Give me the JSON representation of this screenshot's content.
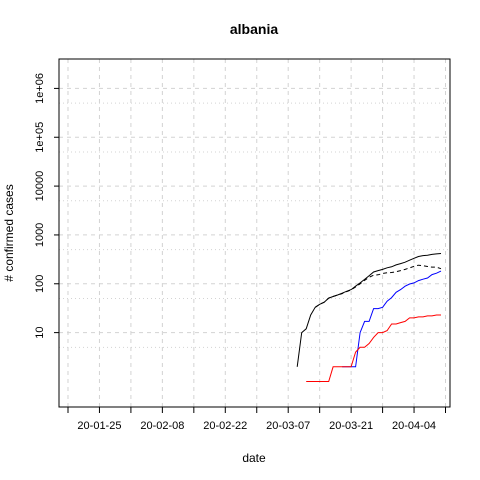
{
  "chart_data": {
    "type": "line",
    "title": "albania",
    "xlabel": "date",
    "ylabel": "# confirmed cases",
    "y_scale": "log",
    "ylim": [
      0.3,
      4000000
    ],
    "xlim": [
      "2020-01-16",
      "2020-04-12"
    ],
    "grid": true,
    "x_ticks": [
      {
        "date": "2020-01-25",
        "label": "20-01-25"
      },
      {
        "date": "2020-02-08",
        "label": "20-02-08"
      },
      {
        "date": "2020-02-22",
        "label": "20-02-22"
      },
      {
        "date": "2020-03-07",
        "label": "20-03-07"
      },
      {
        "date": "2020-03-21",
        "label": "20-03-21"
      },
      {
        "date": "2020-04-04",
        "label": "20-04-04"
      }
    ],
    "x_minor_ticks": [
      "2020-01-18",
      "2020-02-01",
      "2020-02-15",
      "2020-02-29",
      "2020-03-14",
      "2020-03-28",
      "2020-04-11"
    ],
    "y_ticks": [
      {
        "value": 10,
        "label": "10"
      },
      {
        "value": 100,
        "label": "100"
      },
      {
        "value": 1000,
        "label": "1000"
      },
      {
        "value": 10000,
        "label": "10000"
      },
      {
        "value": 100000,
        "label": "1e+05"
      },
      {
        "value": 1000000,
        "label": "1e+06"
      }
    ],
    "series": [
      {
        "color": "#000000",
        "style": "solid",
        "x": [
          "2020-03-09",
          "2020-03-10",
          "2020-03-11",
          "2020-03-12",
          "2020-03-13",
          "2020-03-14",
          "2020-03-15",
          "2020-03-16",
          "2020-03-17",
          "2020-03-18",
          "2020-03-19",
          "2020-03-20",
          "2020-03-21",
          "2020-03-22",
          "2020-03-23",
          "2020-03-24",
          "2020-03-25",
          "2020-03-26",
          "2020-03-27",
          "2020-03-28",
          "2020-03-29",
          "2020-03-30",
          "2020-03-31",
          "2020-04-01",
          "2020-04-02",
          "2020-04-03",
          "2020-04-04",
          "2020-04-05",
          "2020-04-06",
          "2020-04-07",
          "2020-04-08",
          "2020-04-09",
          "2020-04-10"
        ],
        "y": [
          2,
          10,
          12,
          23,
          33,
          38,
          42,
          51,
          55,
          59,
          64,
          70,
          76,
          89,
          104,
          123,
          146,
          174,
          186,
          197,
          212,
          223,
          243,
          259,
          277,
          304,
          333,
          361,
          377,
          383,
          400,
          409,
          416
        ]
      },
      {
        "color": "#000000",
        "style": "dashed",
        "x": [
          "2020-03-13",
          "2020-03-14",
          "2020-03-15",
          "2020-03-16",
          "2020-03-17",
          "2020-03-18",
          "2020-03-19",
          "2020-03-20",
          "2020-03-21",
          "2020-03-22",
          "2020-03-23",
          "2020-03-24",
          "2020-03-25",
          "2020-03-26",
          "2020-03-27",
          "2020-03-28",
          "2020-03-29",
          "2020-03-30",
          "2020-03-31",
          "2020-04-01",
          "2020-04-02",
          "2020-04-03",
          "2020-04-04",
          "2020-04-05",
          "2020-04-06",
          "2020-04-07",
          "2020-04-08",
          "2020-04-09",
          "2020-04-10"
        ],
        "y": [
          33,
          38,
          42,
          51,
          55,
          59,
          63,
          69,
          75,
          86,
          100,
          117,
          136,
          150,
          153,
          162,
          168,
          170,
          177,
          186,
          197,
          211,
          228,
          240,
          234,
          226,
          220,
          218,
          204
        ]
      },
      {
        "color": "#0000ff",
        "style": "solid",
        "x": [
          "2020-03-19",
          "2020-03-20",
          "2020-03-21",
          "2020-03-22",
          "2020-03-23",
          "2020-03-24",
          "2020-03-25",
          "2020-03-26",
          "2020-03-27",
          "2020-03-28",
          "2020-03-29",
          "2020-03-30",
          "2020-03-31",
          "2020-04-01",
          "2020-04-02",
          "2020-04-03",
          "2020-04-04",
          "2020-04-05",
          "2020-04-06",
          "2020-04-07",
          "2020-04-08",
          "2020-04-09",
          "2020-04-10"
        ],
        "y": [
          2,
          2,
          2,
          2,
          10,
          17,
          17,
          31,
          31,
          33,
          44,
          52,
          67,
          76,
          89,
          99,
          104,
          116,
          124,
          131,
          154,
          165,
          182
        ]
      },
      {
        "color": "#ff0000",
        "style": "solid",
        "x": [
          "2020-03-11",
          "2020-03-12",
          "2020-03-13",
          "2020-03-14",
          "2020-03-15",
          "2020-03-16",
          "2020-03-17",
          "2020-03-18",
          "2020-03-19",
          "2020-03-20",
          "2020-03-21",
          "2020-03-22",
          "2020-03-23",
          "2020-03-24",
          "2020-03-25",
          "2020-03-26",
          "2020-03-27",
          "2020-03-28",
          "2020-03-29",
          "2020-03-30",
          "2020-03-31",
          "2020-04-01",
          "2020-04-02",
          "2020-04-03",
          "2020-04-04",
          "2020-04-05",
          "2020-04-06",
          "2020-04-07",
          "2020-04-08",
          "2020-04-09",
          "2020-04-10"
        ],
        "y": [
          1,
          1,
          1,
          1,
          1,
          1,
          2,
          2,
          2,
          2,
          2,
          4,
          5,
          5,
          6,
          8,
          10,
          10,
          11,
          15,
          15,
          16,
          17,
          20,
          20,
          21,
          21,
          22,
          22,
          23,
          23
        ]
      }
    ]
  }
}
